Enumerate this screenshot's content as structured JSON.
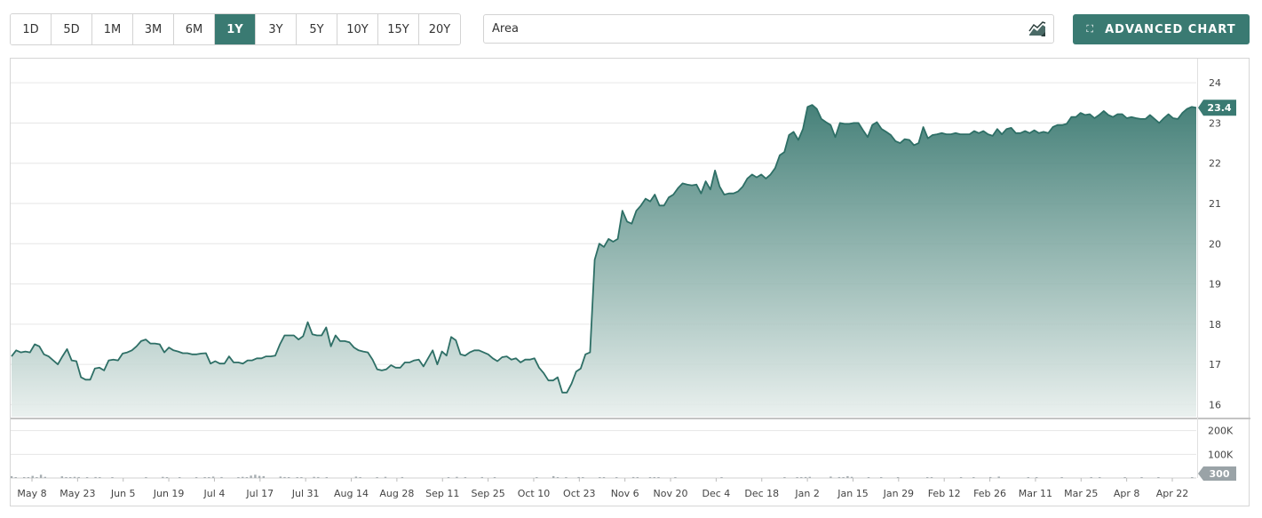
{
  "toolbar": {
    "ranges": [
      "1D",
      "5D",
      "1M",
      "3M",
      "6M",
      "1Y",
      "3Y",
      "5Y",
      "10Y",
      "15Y",
      "20Y"
    ],
    "active_range": "1Y",
    "chart_type": "Area",
    "chart_type_icon": "area-chart-icon",
    "advanced_label": "ADVANCED CHART",
    "advanced_icon": "expand-icon"
  },
  "colors": {
    "accent": "#3a7a72",
    "price_line": "#2e6f66",
    "volume_bar": "#a6adb1",
    "grid": "#e6e6e6"
  },
  "chart_data": {
    "type": "area",
    "price": {
      "ylim": [
        15.7,
        24.6
      ],
      "yticks": [
        16,
        17,
        18,
        19,
        20,
        21,
        22,
        23,
        24
      ],
      "last_value_label": "23.4",
      "values": [
        17.2,
        17.35,
        17.3,
        17.32,
        17.3,
        17.5,
        17.45,
        17.25,
        17.2,
        17.1,
        17.0,
        17.2,
        17.38,
        17.1,
        17.08,
        16.68,
        16.62,
        16.62,
        16.9,
        16.92,
        16.85,
        17.1,
        17.12,
        17.1,
        17.27,
        17.3,
        17.35,
        17.45,
        17.58,
        17.62,
        17.52,
        17.52,
        17.5,
        17.3,
        17.42,
        17.35,
        17.32,
        17.28,
        17.28,
        17.25,
        17.25,
        17.27,
        17.28,
        17.02,
        17.08,
        17.02,
        17.02,
        17.2,
        17.05,
        17.05,
        17.02,
        17.1,
        17.1,
        17.15,
        17.15,
        17.2,
        17.2,
        17.22,
        17.5,
        17.72,
        17.72,
        17.72,
        17.62,
        17.7,
        18.05,
        17.75,
        17.72,
        17.72,
        17.92,
        17.45,
        17.72,
        17.58,
        17.58,
        17.55,
        17.42,
        17.35,
        17.32,
        17.3,
        17.12,
        16.88,
        16.85,
        16.88,
        16.98,
        16.92,
        16.92,
        17.05,
        17.05,
        17.1,
        17.12,
        16.95,
        17.15,
        17.35,
        17.0,
        17.32,
        17.22,
        17.68,
        17.6,
        17.25,
        17.22,
        17.3,
        17.35,
        17.35,
        17.3,
        17.25,
        17.15,
        17.08,
        17.18,
        17.2,
        17.12,
        17.15,
        17.05,
        17.12,
        17.12,
        17.15,
        16.92,
        16.78,
        16.6,
        16.6,
        16.68,
        16.3,
        16.3,
        16.52,
        16.82,
        16.9,
        17.25,
        17.3,
        19.6,
        20.0,
        19.92,
        20.12,
        20.05,
        20.12,
        20.82,
        20.55,
        20.5,
        20.82,
        20.95,
        21.12,
        21.05,
        21.22,
        20.95,
        20.95,
        21.15,
        21.22,
        21.38,
        21.5,
        21.47,
        21.45,
        21.47,
        21.25,
        21.55,
        21.35,
        21.82,
        21.42,
        21.22,
        21.25,
        21.25,
        21.3,
        21.42,
        21.62,
        21.72,
        21.65,
        21.72,
        21.62,
        21.72,
        21.88,
        22.2,
        22.28,
        22.7,
        22.78,
        22.58,
        22.85,
        23.4,
        23.45,
        23.35,
        23.1,
        23.02,
        22.95,
        22.65,
        23.0,
        22.98,
        22.98,
        23.0,
        23.0,
        22.82,
        22.65,
        22.95,
        23.02,
        22.85,
        22.78,
        22.7,
        22.55,
        22.5,
        22.6,
        22.58,
        22.45,
        22.5,
        22.9,
        22.62,
        22.7,
        22.72,
        22.75,
        22.72,
        22.72,
        22.75,
        22.72,
        22.72,
        22.72,
        22.8,
        22.75,
        22.8,
        22.72,
        22.68,
        22.85,
        22.72,
        22.85,
        22.88,
        22.75,
        22.75,
        22.8,
        22.75,
        22.82,
        22.75,
        22.78,
        22.75,
        22.9,
        22.95,
        22.95,
        22.98,
        23.15,
        23.15,
        23.25,
        23.2,
        23.22,
        23.12,
        23.2,
        23.3,
        23.2,
        23.15,
        23.22,
        23.22,
        23.12,
        23.15,
        23.12,
        23.1,
        23.1,
        23.2,
        23.1,
        23.0,
        23.12,
        23.22,
        23.12,
        23.1,
        23.25,
        23.35,
        23.4,
        23.38
      ]
    },
    "volume": {
      "ylim": [
        0,
        240000
      ],
      "yticks": [
        100000,
        200000
      ],
      "ytick_labels": [
        "100K",
        "200K"
      ],
      "last_value_label": "300",
      "values": [
        8000,
        3000,
        0,
        3000,
        2000,
        9000,
        3000,
        14000,
        5000,
        0,
        0,
        0,
        7000,
        2000,
        3000,
        5000,
        4000,
        0,
        2000,
        0,
        4000,
        3000,
        0,
        0,
        2000,
        0,
        0,
        0,
        0,
        0,
        0,
        0,
        2000,
        0,
        0,
        0,
        5000,
        2000,
        0,
        0,
        2000,
        0,
        0,
        0,
        3000,
        0,
        3000,
        2000,
        6000,
        0,
        4000,
        0,
        0,
        0,
        2000,
        5000,
        2000,
        10000,
        14000,
        9000,
        8000,
        0,
        0,
        0,
        6000,
        4000,
        2000,
        0,
        3000,
        2000,
        0,
        0,
        5000,
        4000,
        0,
        2000,
        0,
        0,
        0,
        0,
        0,
        0,
        6000,
        2000,
        0,
        0,
        0,
        3000,
        0,
        5000,
        0,
        0,
        0,
        4000,
        0,
        0,
        0,
        0,
        0,
        0,
        0,
        0,
        0,
        0,
        3000,
        0,
        5000,
        0,
        3000,
        0,
        0,
        0,
        4000,
        0,
        0,
        2000,
        0,
        0,
        0,
        0,
        0,
        0,
        0,
        0,
        0,
        2000,
        0,
        0,
        0,
        8000,
        3000,
        0,
        2000,
        0,
        0,
        4000,
        2000,
        0,
        0,
        0,
        2000,
        3000,
        0,
        0,
        2000,
        0,
        0,
        0,
        4000,
        2000,
        0,
        0,
        3000,
        3000,
        2000,
        0,
        0,
        0,
        2000,
        0,
        0,
        0,
        0,
        0,
        0,
        0,
        0,
        0,
        0,
        2000,
        0,
        0,
        0,
        0,
        0,
        0,
        0,
        0,
        0,
        0,
        0,
        0,
        0,
        0,
        2000,
        0,
        0,
        3000,
        2000,
        4000,
        5000,
        0,
        0,
        0,
        0,
        6000,
        0,
        4000,
        3000,
        8000,
        5000,
        0,
        0,
        0,
        2000,
        0,
        0,
        2000,
        0,
        0,
        0,
        3000,
        0,
        0,
        0,
        0,
        0,
        0,
        2000,
        3000,
        0,
        0,
        0,
        0,
        0,
        0,
        2000,
        0,
        0,
        3000,
        0,
        0,
        0,
        4000,
        0,
        6000,
        0,
        0,
        0,
        0,
        0,
        0,
        3000,
        0,
        2000,
        0,
        0,
        0,
        0,
        0,
        2000,
        0,
        0,
        0,
        0,
        0,
        0,
        2000,
        0,
        3000,
        0,
        0,
        0,
        0,
        0,
        2000,
        0,
        0,
        0,
        2000,
        0,
        0,
        0,
        3000,
        0,
        0,
        0,
        0,
        0,
        0,
        0,
        2000,
        0
      ]
    },
    "x_tick_labels": [
      "May 8",
      "May 23",
      "Jun 5",
      "Jun 19",
      "Jul 4",
      "Jul 17",
      "Jul 31",
      "Aug 14",
      "Aug 28",
      "Sep 11",
      "Sep 25",
      "Oct 10",
      "Oct 23",
      "Nov 6",
      "Nov 20",
      "Dec 4",
      "Dec 18",
      "Jan 2",
      "Jan 15",
      "Jan 29",
      "Feb 12",
      "Feb 26",
      "Mar 11",
      "Mar 25",
      "Apr 8",
      "Apr 22"
    ],
    "grid": true,
    "legend": "none"
  }
}
